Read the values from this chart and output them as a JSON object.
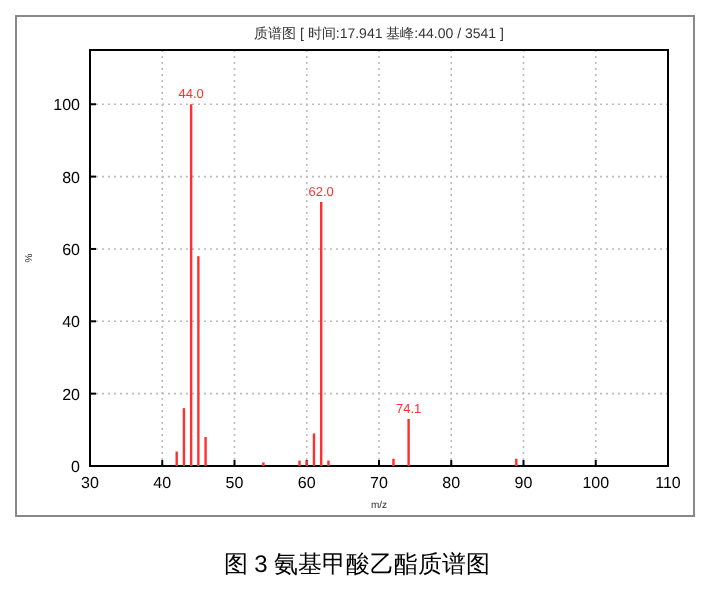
{
  "chart_data": {
    "type": "bar",
    "title": "质谱图 [ 时间:17.941 基峰:44.00 / 3541 ]",
    "xlabel": "m/z",
    "ylabel": "%",
    "x": [
      42,
      43,
      44,
      45,
      46,
      54,
      59,
      60,
      61,
      62,
      63,
      72,
      74.1,
      89
    ],
    "values": [
      4,
      16,
      100,
      58,
      8,
      1,
      1.5,
      1.5,
      9,
      73,
      1.5,
      2,
      13,
      2
    ],
    "color": "#ff3030",
    "annotations": [
      {
        "text": "44.0",
        "x": 44,
        "y": 100
      },
      {
        "text": "62.0",
        "x": 62,
        "y": 73
      },
      {
        "text": "74.1",
        "x": 74.1,
        "y": 13
      },
      "图 3 氨基甲酸乙酯质谱图"
    ],
    "xlim": [
      30,
      110
    ],
    "xticks": [
      30,
      40,
      50,
      60,
      70,
      80,
      90,
      100,
      110
    ],
    "ylim": [
      0,
      115
    ],
    "yticks": [
      0,
      20,
      40,
      60,
      80,
      100
    ],
    "grid": true
  }
}
